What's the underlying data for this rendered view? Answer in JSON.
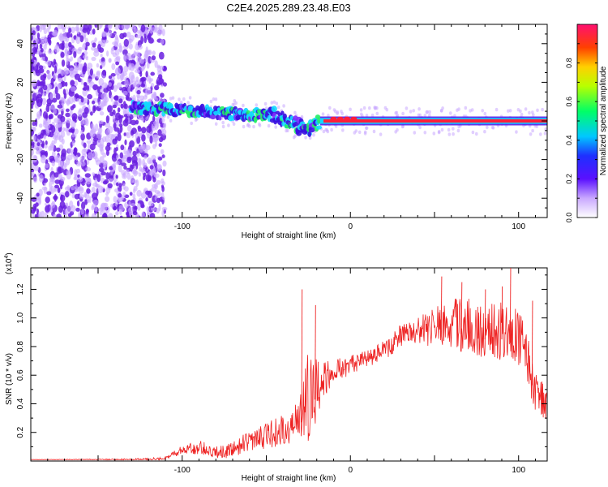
{
  "title": "C2E4.2025.289.23.48.E03",
  "colors": {
    "signal_line": "#ee2222",
    "trace_core": "#ff1f3a",
    "trace_halo": "#12d8ff",
    "noise_dark": "#6a1fe0",
    "noise_light": "#c9a8ff",
    "axis": "#000000"
  },
  "colorbar": {
    "label": "Normalized spectral amplitude",
    "range": [
      0.0,
      1.0
    ],
    "ticks": [
      "0.0",
      "0.2",
      "0.4",
      "0.6",
      "0.8"
    ],
    "tick_values": [
      0.0,
      0.2,
      0.4,
      0.6,
      0.8
    ]
  },
  "chart_data": [
    {
      "type": "heatmap",
      "title": "C2E4.2025.289.23.48.E03",
      "xlabel": "Height of straight line (km)",
      "ylabel": "Frequency (Hz)",
      "xlim": [
        -190,
        117
      ],
      "ylim": [
        -50,
        50
      ],
      "xticks": [
        -100,
        0,
        100
      ],
      "yticks": [
        -40,
        -20,
        0,
        20,
        40
      ],
      "trace": {
        "x": [
          -130,
          -110,
          -90,
          -75,
          -60,
          -45,
          -35,
          -25,
          -18,
          -10,
          0,
          10,
          30,
          50,
          70,
          90,
          110,
          117
        ],
        "frequency": [
          7,
          6,
          5,
          4,
          3,
          3,
          -1,
          -5,
          0,
          1,
          1,
          0,
          0,
          0,
          0,
          0,
          0,
          0
        ]
      }
    },
    {
      "type": "line",
      "xlabel": "Height of straight line (km)",
      "ylabel": "SNR (10 * v/v)",
      "y_scale_label": "(x10",
      "y_scale_exp": "4",
      "y_scale": 10000,
      "xlim": [
        -190,
        117
      ],
      "ylim": [
        0,
        13500
      ],
      "xticks": [
        -100,
        0,
        100
      ],
      "ytick_labels": [
        "0.2",
        "0.4",
        "0.6",
        "0.8",
        "1.0",
        "1.2"
      ],
      "ytick_values": [
        2000,
        4000,
        6000,
        8000,
        10000,
        12000
      ],
      "envelope": {
        "x": [
          -190,
          -130,
          -110,
          -100,
          -90,
          -80,
          -70,
          -60,
          -50,
          -40,
          -30,
          -25,
          -20,
          -15,
          -10,
          0,
          10,
          20,
          30,
          40,
          50,
          60,
          70,
          80,
          90,
          100,
          105,
          110,
          117
        ],
        "base": [
          100,
          100,
          150,
          700,
          800,
          500,
          600,
          1200,
          1500,
          1800,
          2500,
          3500,
          4500,
          5500,
          6000,
          6500,
          7000,
          7500,
          8500,
          8800,
          9000,
          9000,
          8800,
          8500,
          8500,
          8000,
          6500,
          4500,
          3500
        ],
        "amp": [
          0,
          50,
          100,
          300,
          500,
          400,
          600,
          700,
          900,
          1100,
          1600,
          3500,
          2500,
          1500,
          800,
          700,
          600,
          700,
          800,
          900,
          1500,
          1800,
          2000,
          1800,
          2200,
          2000,
          2000,
          1500,
          1200
        ]
      },
      "spikes": [
        {
          "x": -29,
          "y": 12000
        },
        {
          "x": -21,
          "y": 10900
        },
        {
          "x": 54,
          "y": 12900
        },
        {
          "x": 66,
          "y": 12500
        },
        {
          "x": 80,
          "y": 12000
        },
        {
          "x": 90,
          "y": 12200
        },
        {
          "x": 95,
          "y": 13500
        },
        {
          "x": 108,
          "y": 11200
        }
      ]
    }
  ]
}
